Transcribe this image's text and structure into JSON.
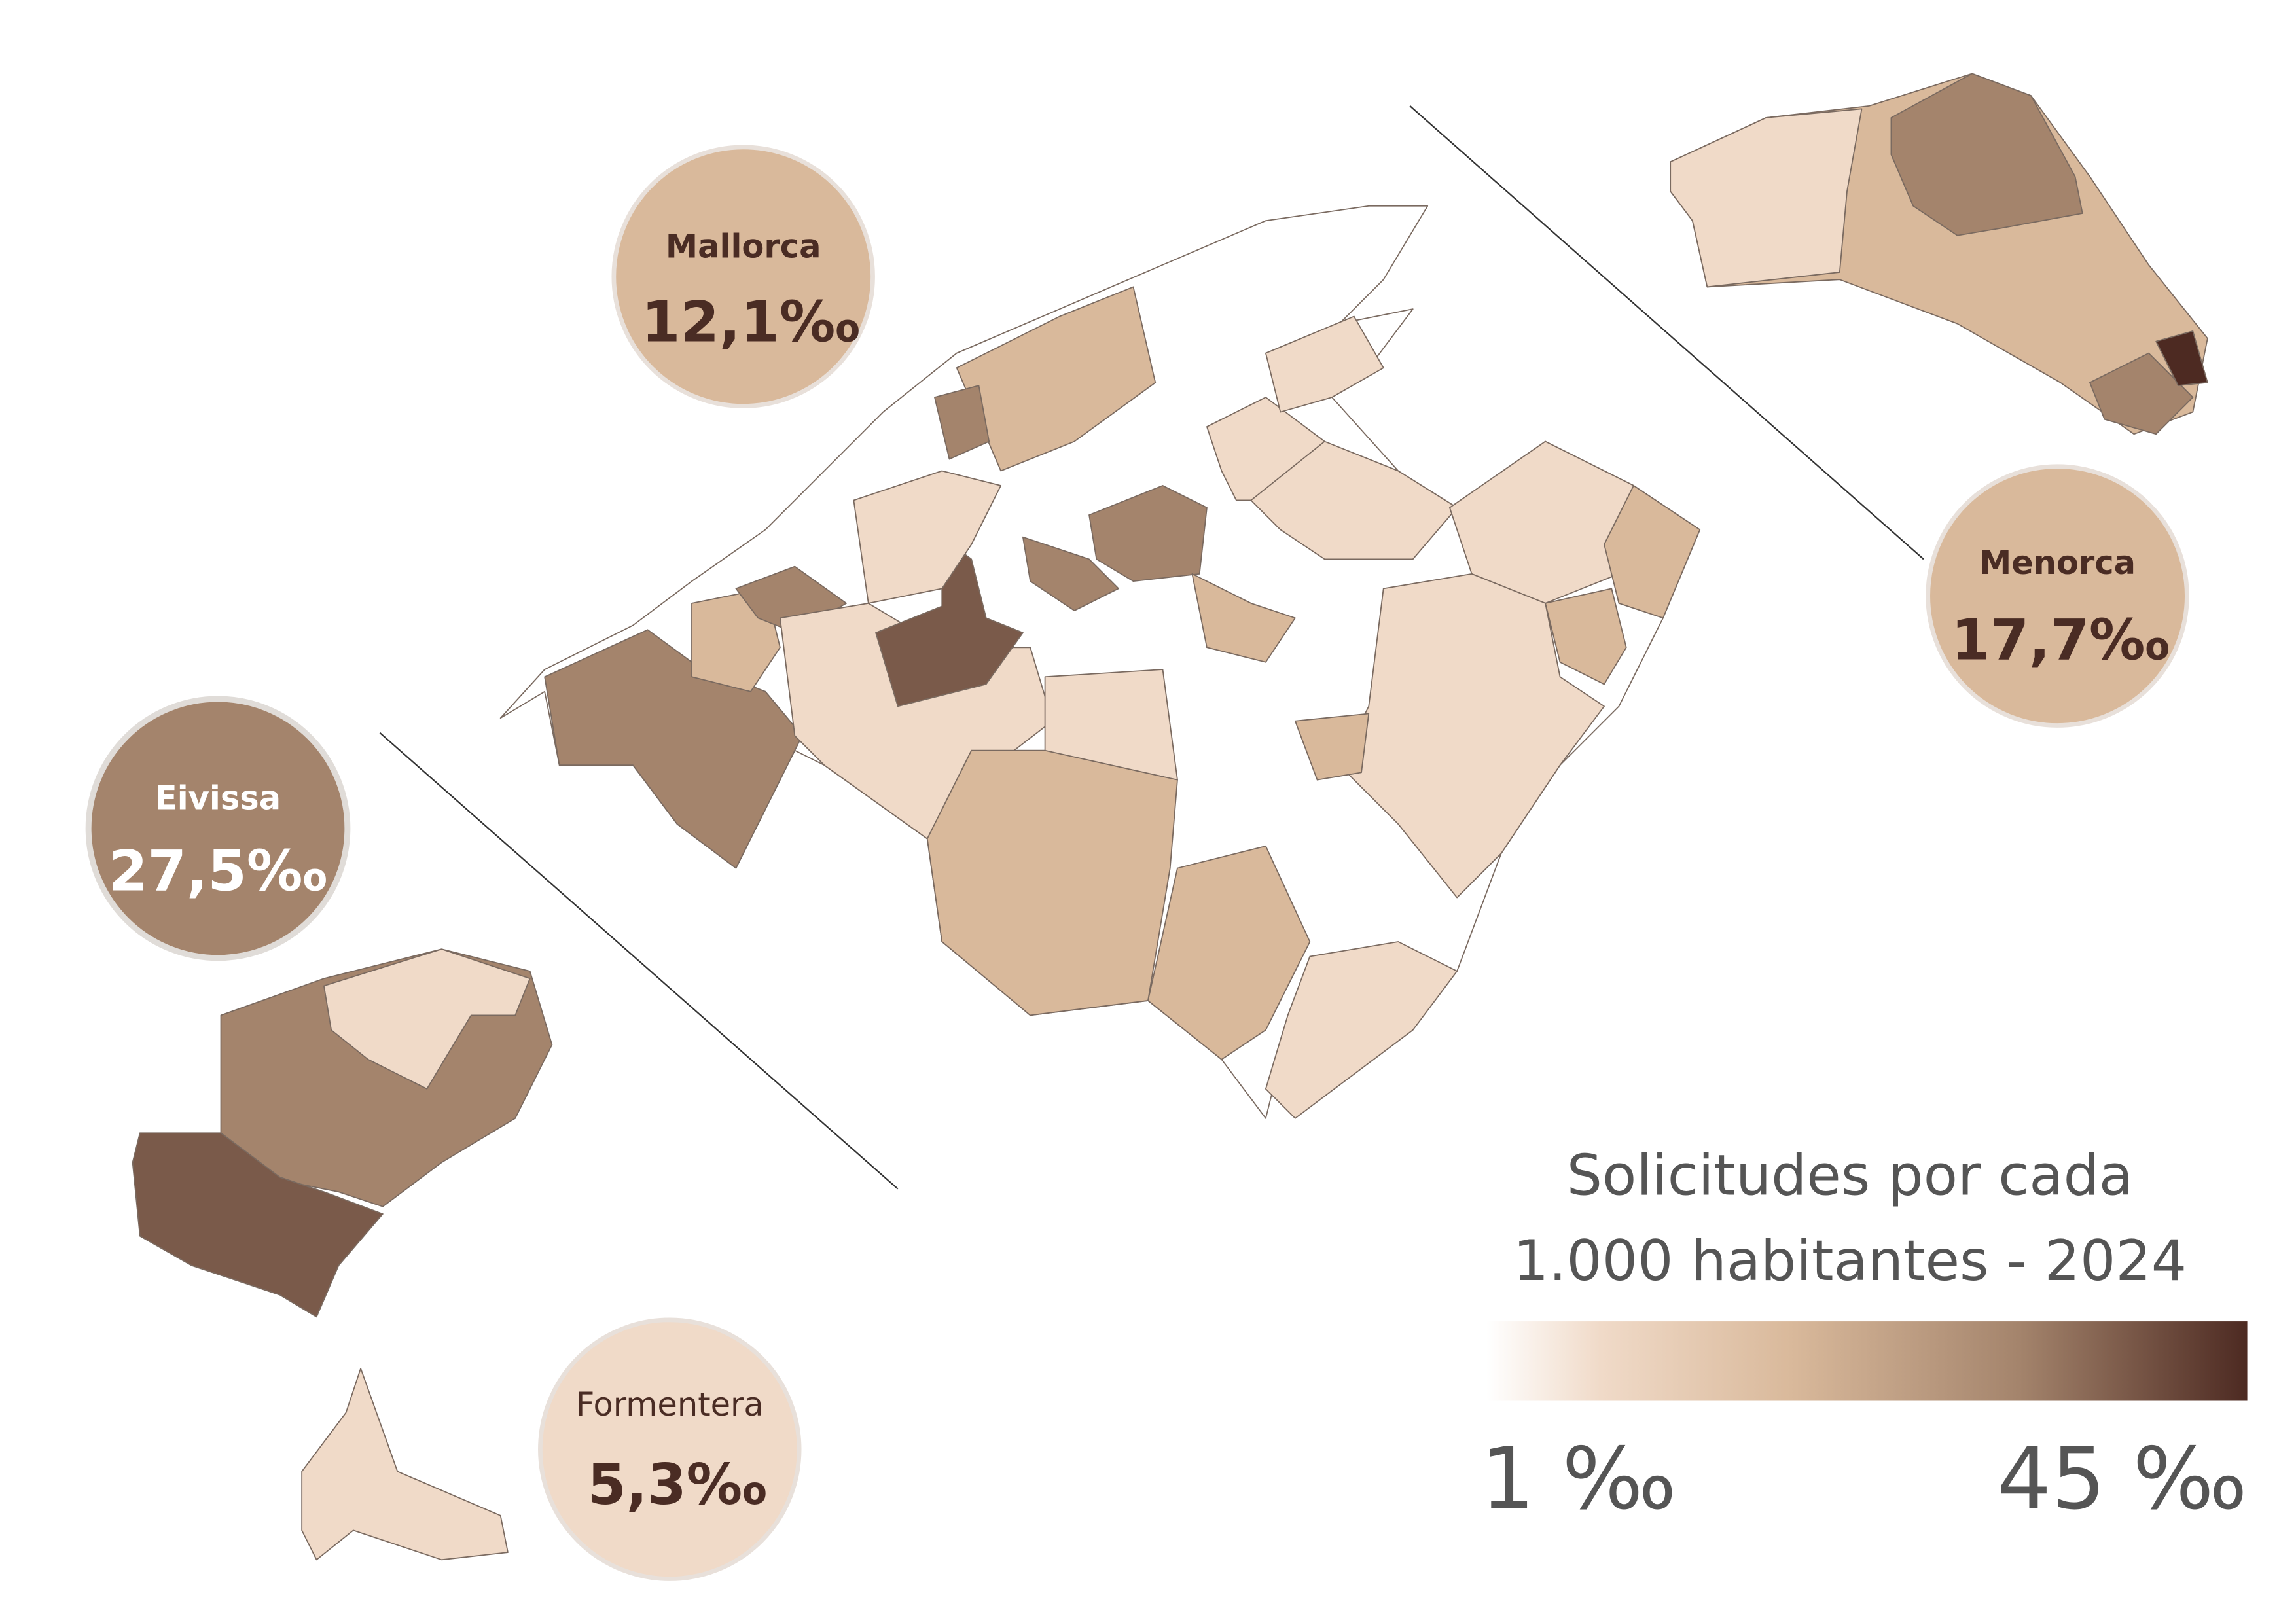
{
  "islands": [
    {
      "name": "Mallorca",
      "value": "12,1‰"
    },
    {
      "name": "Menorca",
      "value": "17,7‰"
    },
    {
      "name": "Eivissa",
      "value": "27,5‰"
    },
    {
      "name": "Formentera",
      "value": "5,3‰"
    }
  ],
  "legend": {
    "title": [
      "Solicitudes por cada",
      "1.000 habitantes - 2024"
    ],
    "min_label": "1 ‰",
    "max_label": "45 ‰"
  }
}
